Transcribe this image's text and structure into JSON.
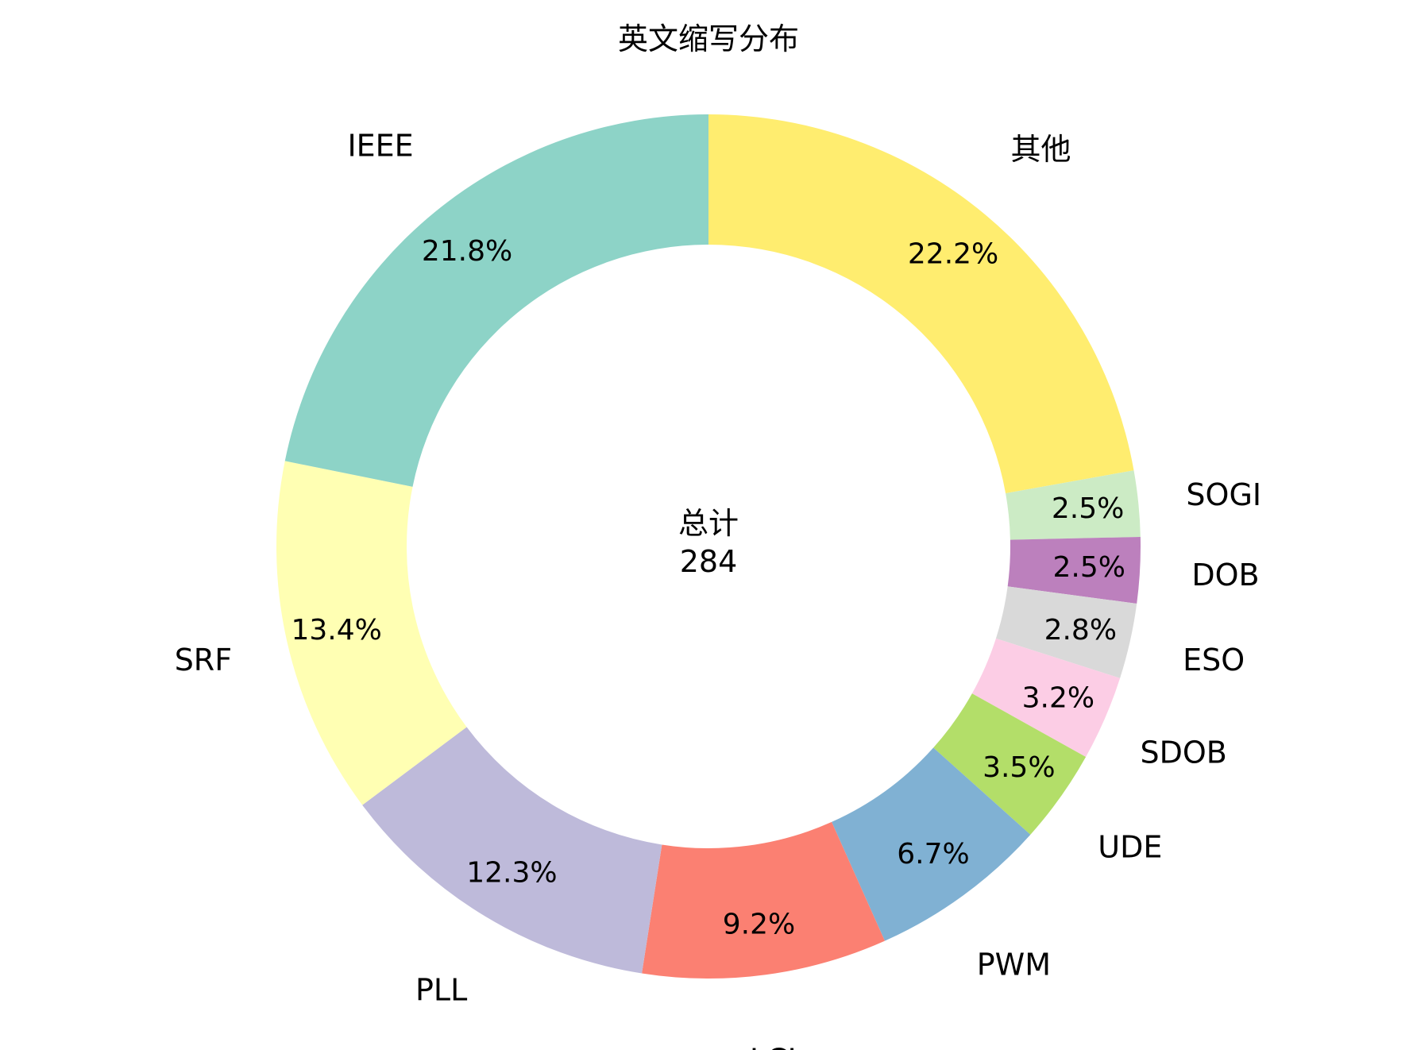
{
  "chart_data": {
    "type": "pie",
    "variant": "donut",
    "title": "英文缩写分布",
    "center_label": "总计",
    "center_value": "284",
    "start": "top",
    "direction": "clockwise",
    "slices": [
      {
        "label": "其他",
        "value": 63,
        "pct": "22.2%",
        "color": "#ffed6f"
      },
      {
        "label": "SOGI",
        "value": 7,
        "pct": "2.5%",
        "color": "#ccebc5"
      },
      {
        "label": "DOB",
        "value": 7,
        "pct": "2.5%",
        "color": "#bc80bd"
      },
      {
        "label": "ESO",
        "value": 8,
        "pct": "2.8%",
        "color": "#d9d9d9"
      },
      {
        "label": "SDOB",
        "value": 9,
        "pct": "3.2%",
        "color": "#fccde5"
      },
      {
        "label": "UDE",
        "value": 10,
        "pct": "3.5%",
        "color": "#b3de69"
      },
      {
        "label": "PWM",
        "value": 19,
        "pct": "6.7%",
        "color": "#80b1d3"
      },
      {
        "label": "LCL",
        "value": 26,
        "pct": "9.2%",
        "color": "#fb8072"
      },
      {
        "label": "PLL",
        "value": 35,
        "pct": "12.3%",
        "color": "#bebada"
      },
      {
        "label": "SRF",
        "value": 38,
        "pct": "13.4%",
        "color": "#ffffb3"
      },
      {
        "label": "IEEE",
        "value": 62,
        "pct": "21.8%",
        "color": "#8dd3c7"
      }
    ]
  }
}
